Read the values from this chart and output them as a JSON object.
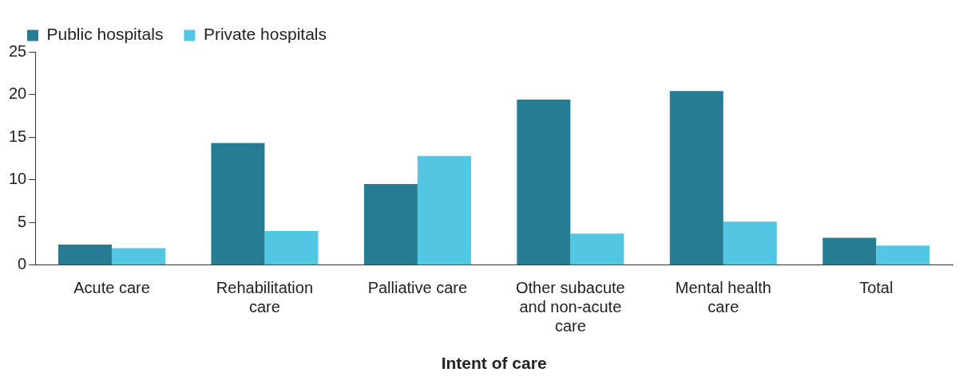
{
  "chart_data": {
    "type": "bar",
    "xlabel": "Intent of care",
    "categories": [
      "Acute care",
      "Rehabilitation care",
      "Palliative care",
      "Other subacute and non-acute care",
      "Mental health care",
      "Total"
    ],
    "series": [
      {
        "name": "Public hospitals",
        "color": "#267d93",
        "values": [
          2.4,
          14.3,
          9.5,
          19.4,
          20.4,
          3.2
        ]
      },
      {
        "name": "Private hospitals",
        "color": "#52c7e4",
        "values": [
          2.0,
          4.0,
          12.8,
          3.7,
          5.1,
          2.3
        ]
      }
    ],
    "ylim": [
      0,
      25
    ],
    "yticks": [
      0,
      5,
      10,
      15,
      20,
      25
    ],
    "grid": false,
    "legend": "top left"
  }
}
